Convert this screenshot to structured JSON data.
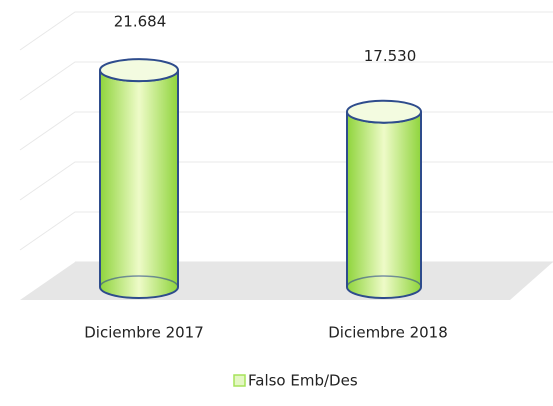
{
  "chart_data": {
    "type": "cylinder",
    "categories": [
      "Diciembre 2017",
      "Diciembre 2018"
    ],
    "series": [
      {
        "name": "Falso Emb/Des",
        "color": "#a6e35a",
        "values": [
          21684,
          17530
        ],
        "value_labels": [
          "21.684",
          "17.530"
        ]
      }
    ],
    "ylim": [
      0,
      25000
    ],
    "yticks": [
      0,
      5000,
      10000,
      15000,
      20000,
      25000
    ],
    "grid": true,
    "legend": "bottom"
  }
}
